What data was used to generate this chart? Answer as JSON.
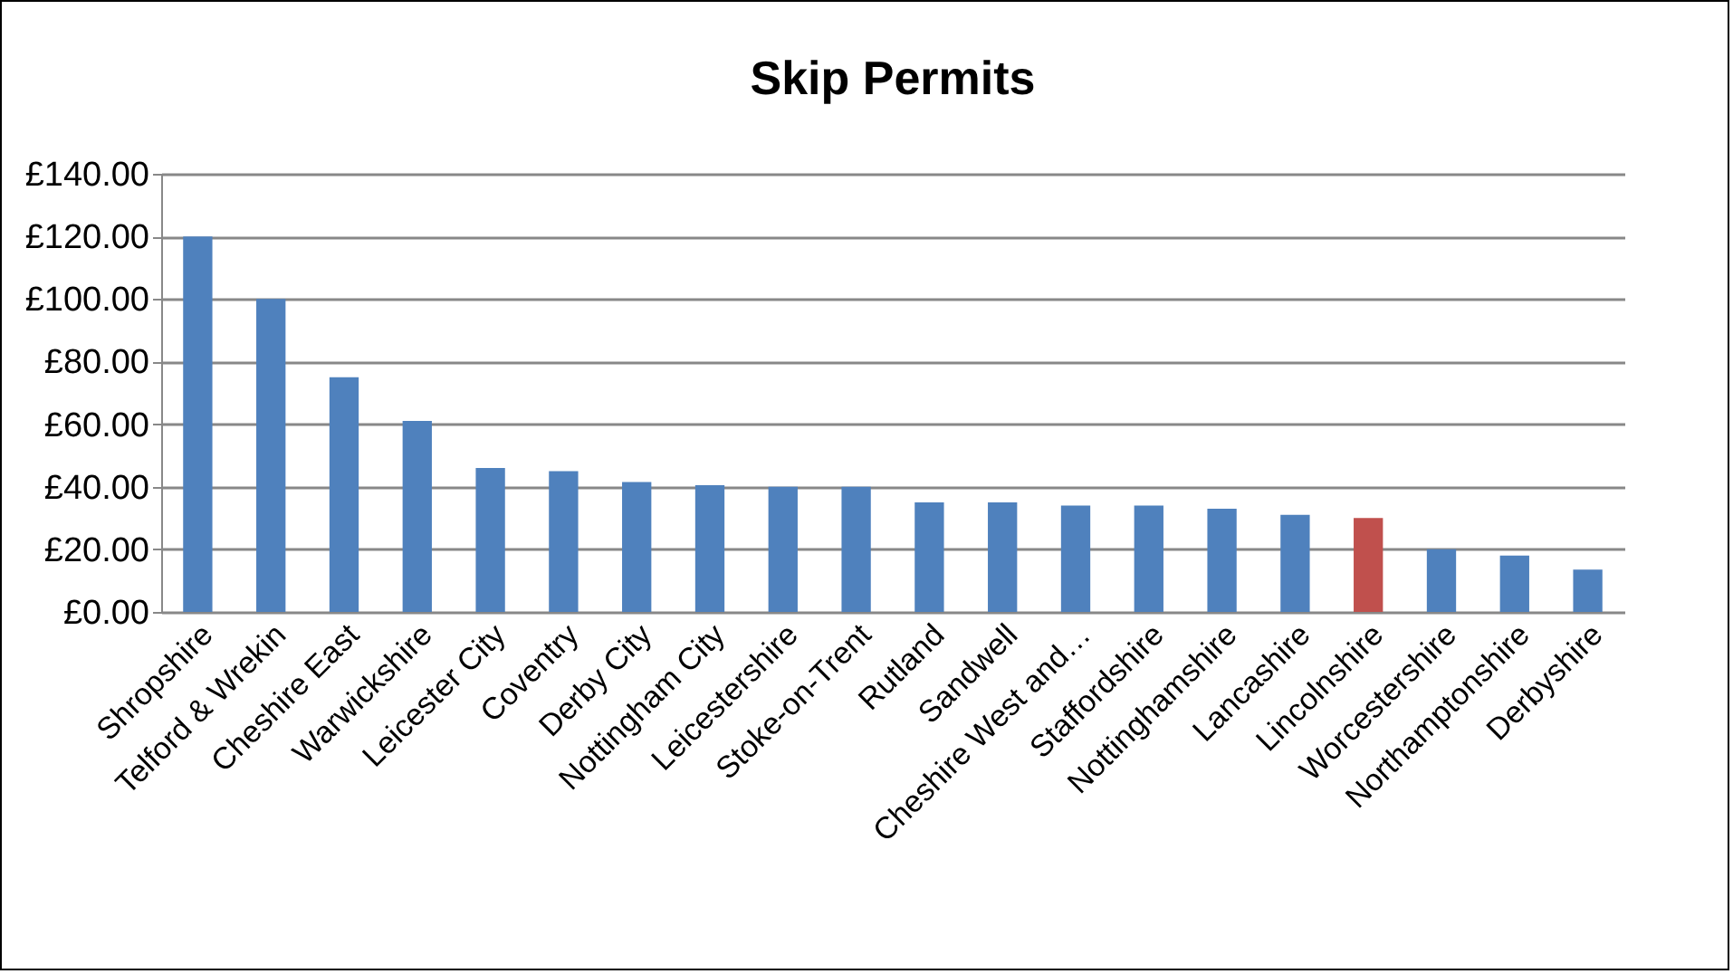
{
  "chart_data": {
    "type": "bar",
    "title": "Skip Permits",
    "categories": [
      "Shropshire",
      "Telford & Wrekin",
      "Cheshire East",
      "Warwickshire",
      "Leicester City",
      "Coventry",
      "Derby City",
      "Nottingham City",
      "Leicestershire",
      "Stoke-on-Trent",
      "Rutland",
      "Sandwell",
      "Cheshire West and…",
      "Staffordshire",
      "Nottinghamshire",
      "Lancashire",
      "Lincolnshire",
      "Worcestershire",
      "Northamptonshire",
      "Derbyshire"
    ],
    "values": [
      120,
      100,
      75,
      61,
      46,
      45,
      41.5,
      40.5,
      40,
      40,
      35,
      35,
      34,
      34,
      33,
      31,
      30,
      20,
      18,
      13.5
    ],
    "colors": [
      "#4f81bd",
      "#4f81bd",
      "#4f81bd",
      "#4f81bd",
      "#4f81bd",
      "#4f81bd",
      "#4f81bd",
      "#4f81bd",
      "#4f81bd",
      "#4f81bd",
      "#4f81bd",
      "#4f81bd",
      "#4f81bd",
      "#4f81bd",
      "#4f81bd",
      "#4f81bd",
      "#c0504d",
      "#4f81bd",
      "#4f81bd",
      "#4f81bd"
    ],
    "ylim": [
      0,
      140
    ],
    "yticks": [
      {
        "value": 0,
        "label": "£0.00"
      },
      {
        "value": 20,
        "label": "£20.00"
      },
      {
        "value": 40,
        "label": "£40.00"
      },
      {
        "value": 60,
        "label": "£60.00"
      },
      {
        "value": 80,
        "label": "£80.00"
      },
      {
        "value": 100,
        "label": "£100.00"
      },
      {
        "value": 120,
        "label": "£120.00"
      },
      {
        "value": 140,
        "label": "£140.00"
      }
    ],
    "grid": "y"
  }
}
